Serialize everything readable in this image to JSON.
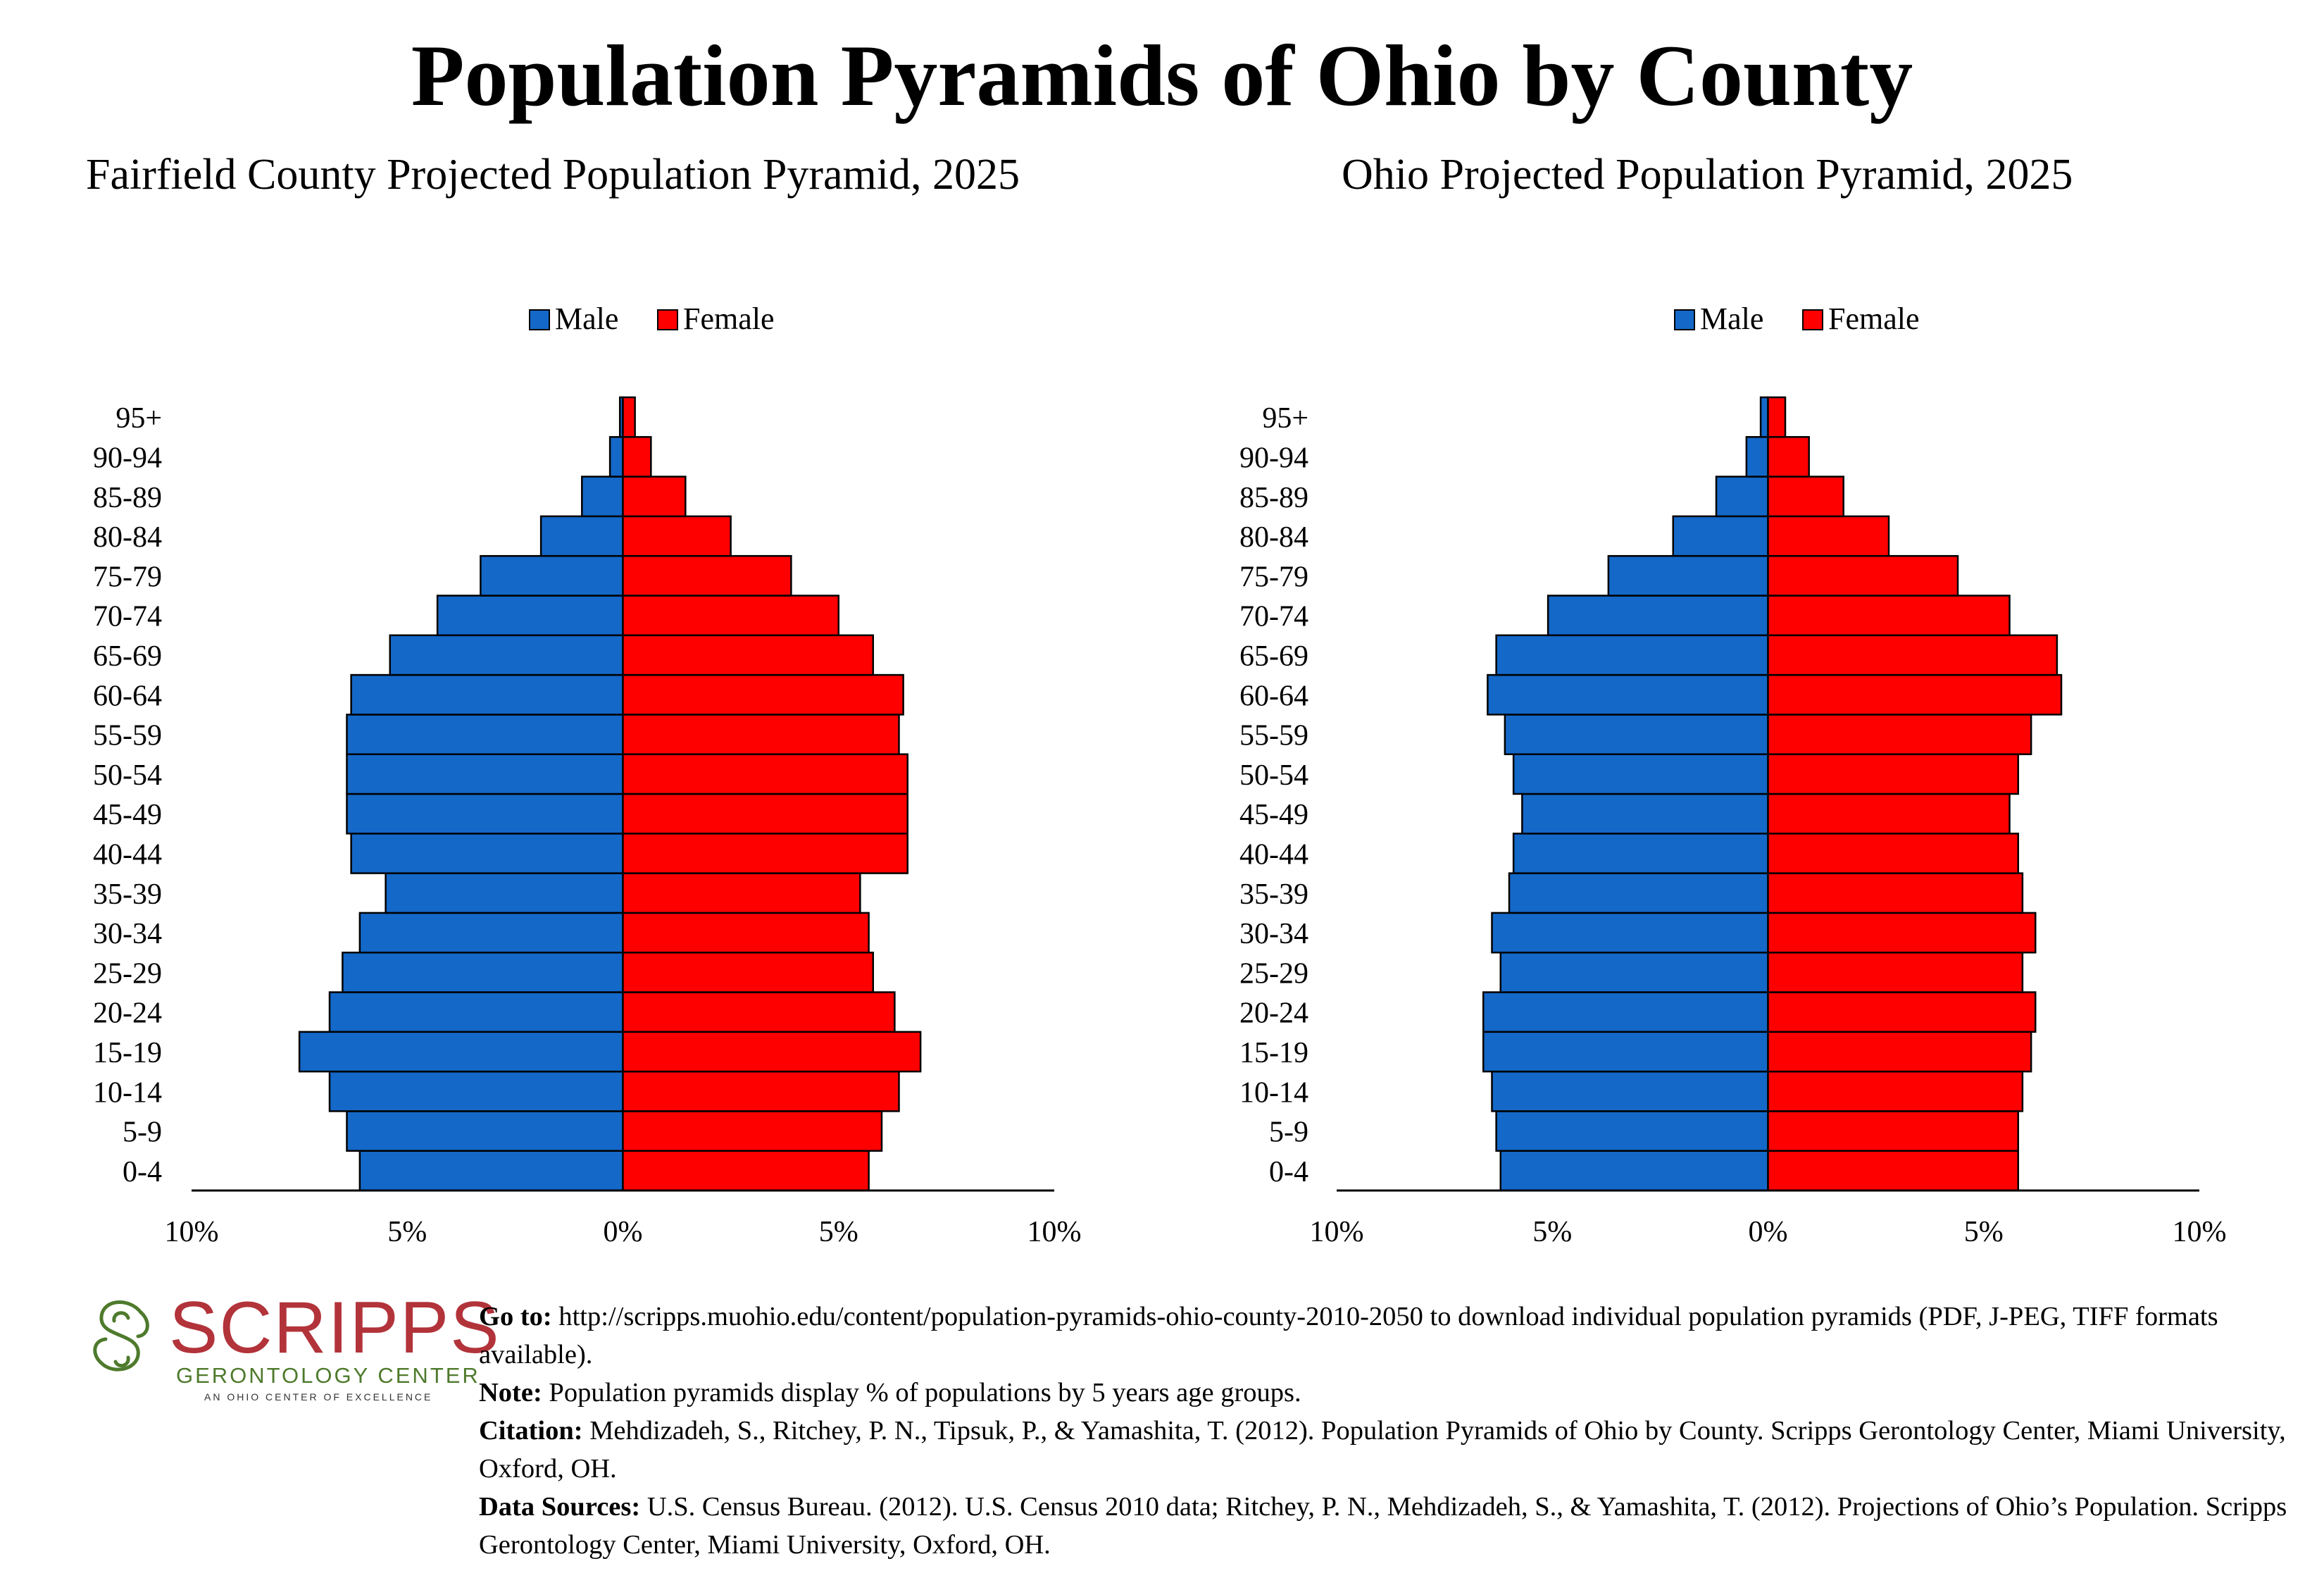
{
  "title": "Population Pyramids of Ohio by County",
  "colors": {
    "male": "#1468c8",
    "female": "#ff0000"
  },
  "chart_data": [
    {
      "type": "bar",
      "title": "Fairfield County Projected Population Pyramid, 2025",
      "legend": [
        "Male",
        "Female"
      ],
      "legend_position": "top",
      "categories": [
        "0-4",
        "5-9",
        "10-14",
        "15-19",
        "20-24",
        "25-29",
        "30-34",
        "35-39",
        "40-44",
        "45-49",
        "50-54",
        "55-59",
        "60-64",
        "65-69",
        "70-74",
        "75-79",
        "80-84",
        "85-89",
        "90-94",
        "95+"
      ],
      "series": [
        {
          "name": "Male",
          "values": [
            6.1,
            6.4,
            6.8,
            7.5,
            6.8,
            6.5,
            6.1,
            5.5,
            6.3,
            6.4,
            6.4,
            6.4,
            6.3,
            5.4,
            4.3,
            3.3,
            1.9,
            0.95,
            0.3,
            0.07
          ]
        },
        {
          "name": "Female",
          "values": [
            5.7,
            6.0,
            6.4,
            6.9,
            6.3,
            5.8,
            5.7,
            5.5,
            6.6,
            6.6,
            6.6,
            6.4,
            6.5,
            5.8,
            5.0,
            3.9,
            2.5,
            1.45,
            0.65,
            0.28
          ]
        }
      ],
      "axis_ticks": [
        "10%",
        "5%",
        "0%",
        "5%",
        "10%"
      ],
      "xlim": [
        -10,
        10
      ]
    },
    {
      "type": "bar",
      "title": "Ohio Projected Population Pyramid, 2025",
      "legend": [
        "Male",
        "Female"
      ],
      "legend_position": "top",
      "categories": [
        "0-4",
        "5-9",
        "10-14",
        "15-19",
        "20-24",
        "25-29",
        "30-34",
        "35-39",
        "40-44",
        "45-49",
        "50-54",
        "55-59",
        "60-64",
        "65-69",
        "70-74",
        "75-79",
        "80-84",
        "85-89",
        "90-94",
        "95+"
      ],
      "series": [
        {
          "name": "Male",
          "values": [
            6.2,
            6.3,
            6.4,
            6.6,
            6.6,
            6.2,
            6.4,
            6.0,
            5.9,
            5.7,
            5.9,
            6.1,
            6.5,
            6.3,
            5.1,
            3.7,
            2.2,
            1.2,
            0.5,
            0.17
          ]
        },
        {
          "name": "Female",
          "values": [
            5.8,
            5.8,
            5.9,
            6.1,
            6.2,
            5.9,
            6.2,
            5.9,
            5.8,
            5.6,
            5.8,
            6.1,
            6.8,
            6.7,
            5.6,
            4.4,
            2.8,
            1.75,
            0.95,
            0.4
          ]
        }
      ],
      "axis_ticks": [
        "10%",
        "5%",
        "0%",
        "5%",
        "10%"
      ],
      "xlim": [
        -10,
        10
      ]
    }
  ],
  "logo": {
    "name": "SCRIPPS",
    "subtitle": "GERONTOLOGY CENTER",
    "tagline": "AN OHIO CENTER OF EXCELLENCE"
  },
  "footer": {
    "goto_label": "Go to:",
    "goto_text": "http://scripps.muohio.edu/content/population-pyramids-ohio-county-2010-2050 to download individual population pyramids (PDF, J-PEG, TIFF formats available).",
    "note_label": "Note:",
    "note_text": "Population pyramids display % of populations by 5 years age groups.",
    "citation_label": "Citation:",
    "citation_text": "Mehdizadeh, S., Ritchey, P. N., Tipsuk, P., & Yamashita, T. (2012). Population Pyramids of Ohio by County. Scripps Gerontology Center, Miami University, Oxford, OH.",
    "sources_label": "Data Sources:",
    "sources_text": "U.S. Census Bureau. (2012). U.S. Census 2010 data; Ritchey, P. N., Mehdizadeh, S., & Yamashita, T. (2012). Projections of Ohio’s Population. Scripps Gerontology Center, Miami University, Oxford, OH."
  }
}
